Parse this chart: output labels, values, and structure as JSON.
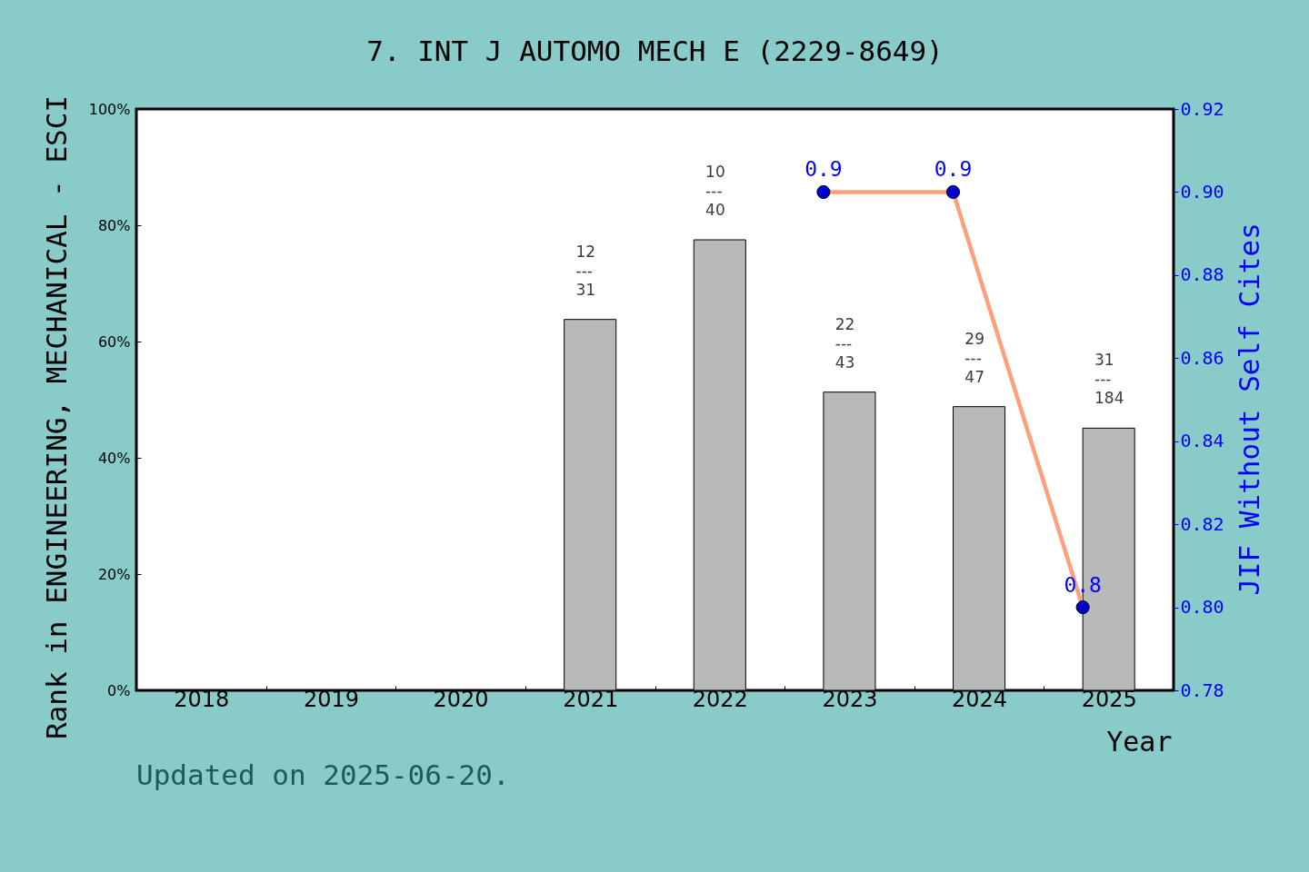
{
  "chart_data": {
    "type": "bar",
    "title": "7. INT J AUTOMO MECH E (2229-8649)",
    "xlabel": "Year",
    "ylabel": "Rank in ENGINEERING, MECHANICAL - ESCI",
    "y2label": "JIF Without Self Cites",
    "annotations": [
      "Updated on 2025-06-20.",
      {
        "text": "12\n---\n31",
        "x": "2021",
        "y": 63.8
      },
      {
        "text": "10\n---\n40",
        "x": "2022",
        "y": 77.5
      },
      {
        "text": "22\n---\n43",
        "x": "2023",
        "y": 51.3
      },
      {
        "text": "29\n---\n47",
        "x": "2024",
        "y": 48.8
      },
      {
        "text": "31\n---\n184",
        "x": "2025",
        "y": 45.1
      }
    ],
    "categories": [
      "2018",
      "2019",
      "2020",
      "2021",
      "2022",
      "2023",
      "2024",
      "2025"
    ],
    "series": [
      {
        "color": "#b8b9bb",
        "values": [
          null,
          null,
          null,
          63.8,
          77.5,
          51.3,
          48.8,
          45.1
        ]
      },
      {
        "type": "line",
        "axis": "y2",
        "color": "#ffa07a",
        "values": [
          null,
          null,
          null,
          null,
          null,
          0.9,
          0.9,
          0.8
        ],
        "value_labels": [
          null,
          null,
          null,
          null,
          null,
          "0.9",
          "0.9",
          "0.8"
        ]
      }
    ],
    "ylim": [
      0,
      100
    ],
    "yticks": [
      {
        "value": 0,
        "label": "0%"
      },
      {
        "value": 20,
        "label": "20%"
      },
      {
        "value": 40,
        "label": "40%"
      },
      {
        "value": 60,
        "label": "60%"
      },
      {
        "value": 80,
        "label": "80%"
      },
      {
        "value": 100,
        "label": "100%"
      }
    ],
    "y2lim": [
      0.78,
      0.92
    ],
    "y2ticks": [
      0.78,
      {
        "value": 0.8,
        "label": "0.80"
      },
      0.82,
      0.84,
      0.86,
      0.88,
      {
        "value": 0.9,
        "label": "0.90"
      },
      0.92
    ],
    "grid": false,
    "marker": "circle",
    "line_style": "solid"
  }
}
